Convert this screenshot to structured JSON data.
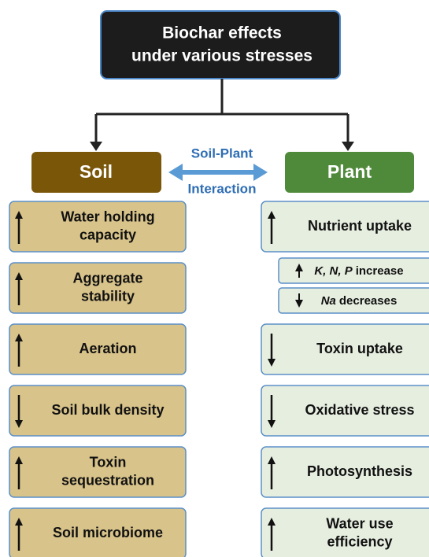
{
  "title": [
    "Biochar effects",
    "under various stresses"
  ],
  "interaction": [
    "Soil-Plant",
    "Interaction"
  ],
  "soil": {
    "label": "Soil",
    "items": [
      [
        "Water holding",
        "capacity"
      ],
      [
        "Aggregate",
        "stability"
      ],
      [
        "Aeration"
      ],
      [
        "Soil bulk density"
      ],
      [
        "Toxin",
        "sequestration"
      ],
      [
        "Soil microbiome"
      ]
    ]
  },
  "plant": {
    "label": "Plant",
    "items": [
      [
        "Nutrient uptake"
      ],
      [
        "Toxin uptake"
      ],
      [
        "Oxidative stress"
      ],
      [
        "Photosynthesis"
      ],
      [
        "Water use",
        "efficiency"
      ]
    ],
    "sub": [
      {
        "em": "K, N, P",
        "text": "increase"
      },
      {
        "em": "Na",
        "text": "decreases"
      }
    ]
  }
}
